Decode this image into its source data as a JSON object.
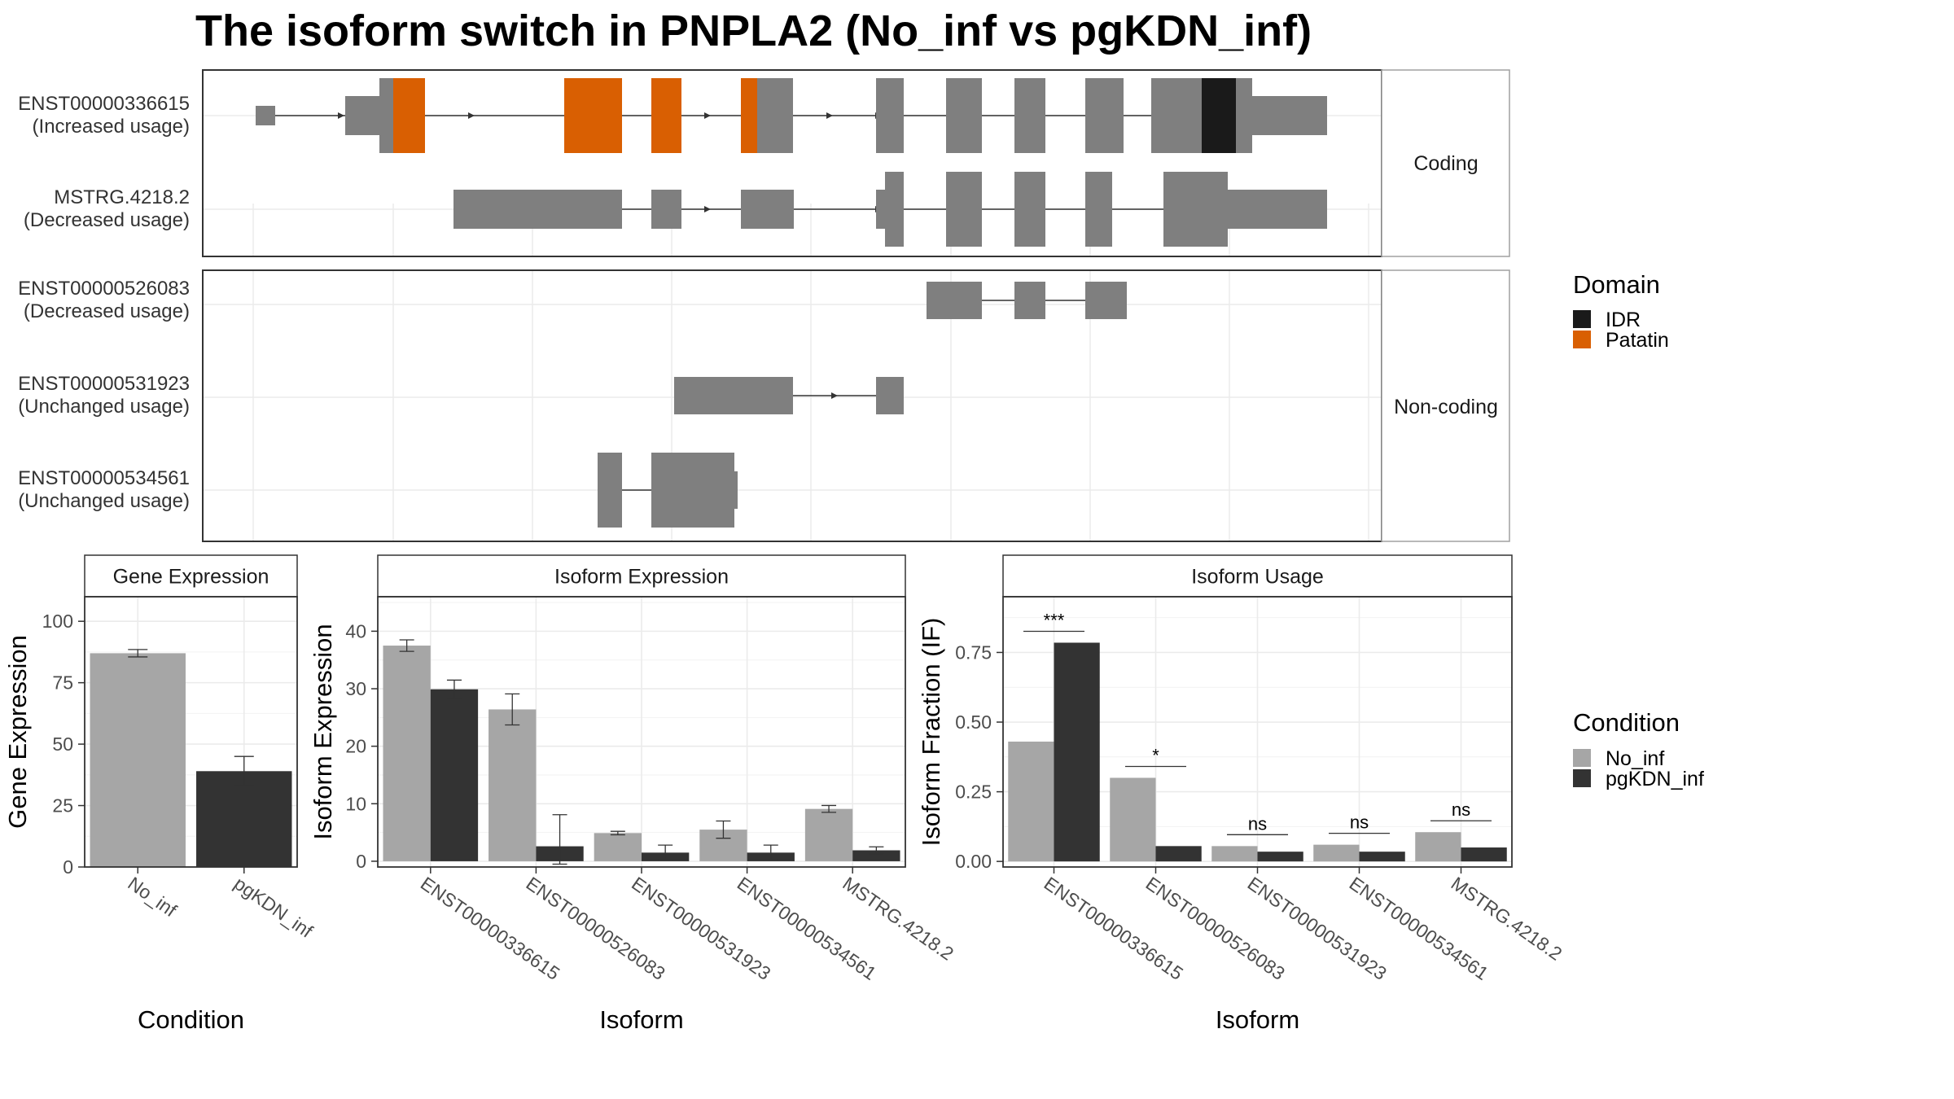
{
  "title": "The isoform switch in PNPLA2 (No_inf vs pgKDN_inf)",
  "colors": {
    "exon": "#7f7f7f",
    "idr": "#1a1a1a",
    "patatin": "#d95f02",
    "no_inf": "#a6a6a6",
    "pgkdn_inf": "#333333",
    "grid": "#ebebeb",
    "strip_fill": "#ffffff"
  },
  "structure": {
    "coding_label": "Coding",
    "noncoding_label": "Non-coding",
    "transcripts": [
      {
        "id": "ENST00000336615",
        "usage": "(Increased usage)",
        "group": "Coding"
      },
      {
        "id": "MSTRG.4218.2",
        "usage": "(Decreased usage)",
        "group": "Coding"
      },
      {
        "id": "ENST00000526083",
        "usage": "(Decreased usage)",
        "group": "Non-coding"
      },
      {
        "id": "ENST00000531923",
        "usage": "(Unchanged usage)",
        "group": "Non-coding"
      },
      {
        "id": "ENST00000534561",
        "usage": "(Unchanged usage)",
        "group": "Non-coding"
      }
    ]
  },
  "legend_domain": {
    "title": "Domain",
    "items": [
      {
        "label": "IDR",
        "color": "#1a1a1a"
      },
      {
        "label": "Patatin",
        "color": "#d95f02"
      }
    ]
  },
  "legend_condition": {
    "title": "Condition",
    "items": [
      {
        "label": "No_inf",
        "color": "#a6a6a6"
      },
      {
        "label": "pgKDN_inf",
        "color": "#333333"
      }
    ]
  },
  "chart_data": [
    {
      "type": "bar",
      "title": "Gene Expression",
      "xlabel": "Condition",
      "ylabel": "Gene Expression",
      "categories": [
        "No_inf",
        "pgKDN_inf"
      ],
      "values": [
        87,
        39
      ],
      "errors": [
        1.5,
        6
      ],
      "ylim": [
        0,
        110
      ],
      "yticks": [
        0,
        25,
        50,
        75,
        100
      ]
    },
    {
      "type": "bar",
      "title": "Isoform Expression",
      "xlabel": "Isoform",
      "ylabel": "Isoform Expression",
      "categories": [
        "ENST00000336615",
        "ENST00000526083",
        "ENST00000531923",
        "ENST00000534561",
        "MSTRG.4218.2"
      ],
      "series": [
        {
          "name": "No_inf",
          "values": [
            37.5,
            26.4,
            4.9,
            5.5,
            9.1
          ],
          "errors": [
            1,
            2.7,
            0.3,
            1.5,
            0.6
          ]
        },
        {
          "name": "pgKDN_inf",
          "values": [
            29.9,
            2.6,
            1.5,
            1.5,
            1.9
          ],
          "errors": [
            1.6,
            5.5,
            1.3,
            1.3,
            0.6
          ]
        }
      ],
      "ylim": [
        -1,
        46
      ],
      "yticks": [
        0,
        10,
        20,
        30,
        40
      ]
    },
    {
      "type": "bar",
      "title": "Isoform Usage",
      "xlabel": "Isoform",
      "ylabel": "Isoform Fraction (IF)",
      "categories": [
        "ENST00000336615",
        "ENST00000526083",
        "ENST00000531923",
        "ENST00000534561",
        "MSTRG.4218.2"
      ],
      "series": [
        {
          "name": "No_inf",
          "values": [
            0.43,
            0.3,
            0.055,
            0.06,
            0.105
          ]
        },
        {
          "name": "pgKDN_inf",
          "values": [
            0.785,
            0.055,
            0.035,
            0.035,
            0.05
          ]
        }
      ],
      "significance": [
        "***",
        "*",
        "ns",
        "ns",
        "ns"
      ],
      "ylim": [
        -0.02,
        0.95
      ],
      "yticks": [
        "0.00",
        "0.25",
        "0.50",
        "0.75"
      ]
    }
  ]
}
